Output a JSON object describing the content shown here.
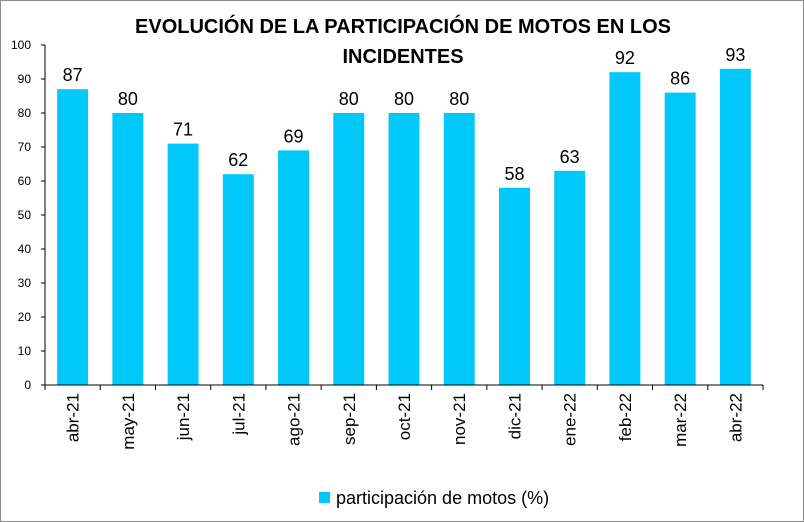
{
  "chart_data": {
    "type": "bar",
    "title_lines": [
      "EVOLUCIÓN DE LA PARTICIPACIÓN DE MOTOS EN LOS",
      "INCIDENTES"
    ],
    "categories": [
      "abr-21",
      "may-21",
      "jun-21",
      "jul-21",
      "ago-21",
      "sep-21",
      "oct-21",
      "nov-21",
      "dic-21",
      "ene-22",
      "feb-22",
      "mar-22",
      "abr-22"
    ],
    "series": [
      {
        "name": "participación de motos (%)",
        "values": [
          87,
          80,
          71,
          62,
          69,
          80,
          80,
          80,
          58,
          63,
          92,
          86,
          93
        ],
        "color": "#00c8f8"
      }
    ],
    "ylim": [
      0,
      100
    ],
    "yticks": [
      0,
      10,
      20,
      30,
      40,
      50,
      60,
      70,
      80,
      90,
      100
    ],
    "grid": false,
    "legend_position": "bottom",
    "data_labels": true
  }
}
